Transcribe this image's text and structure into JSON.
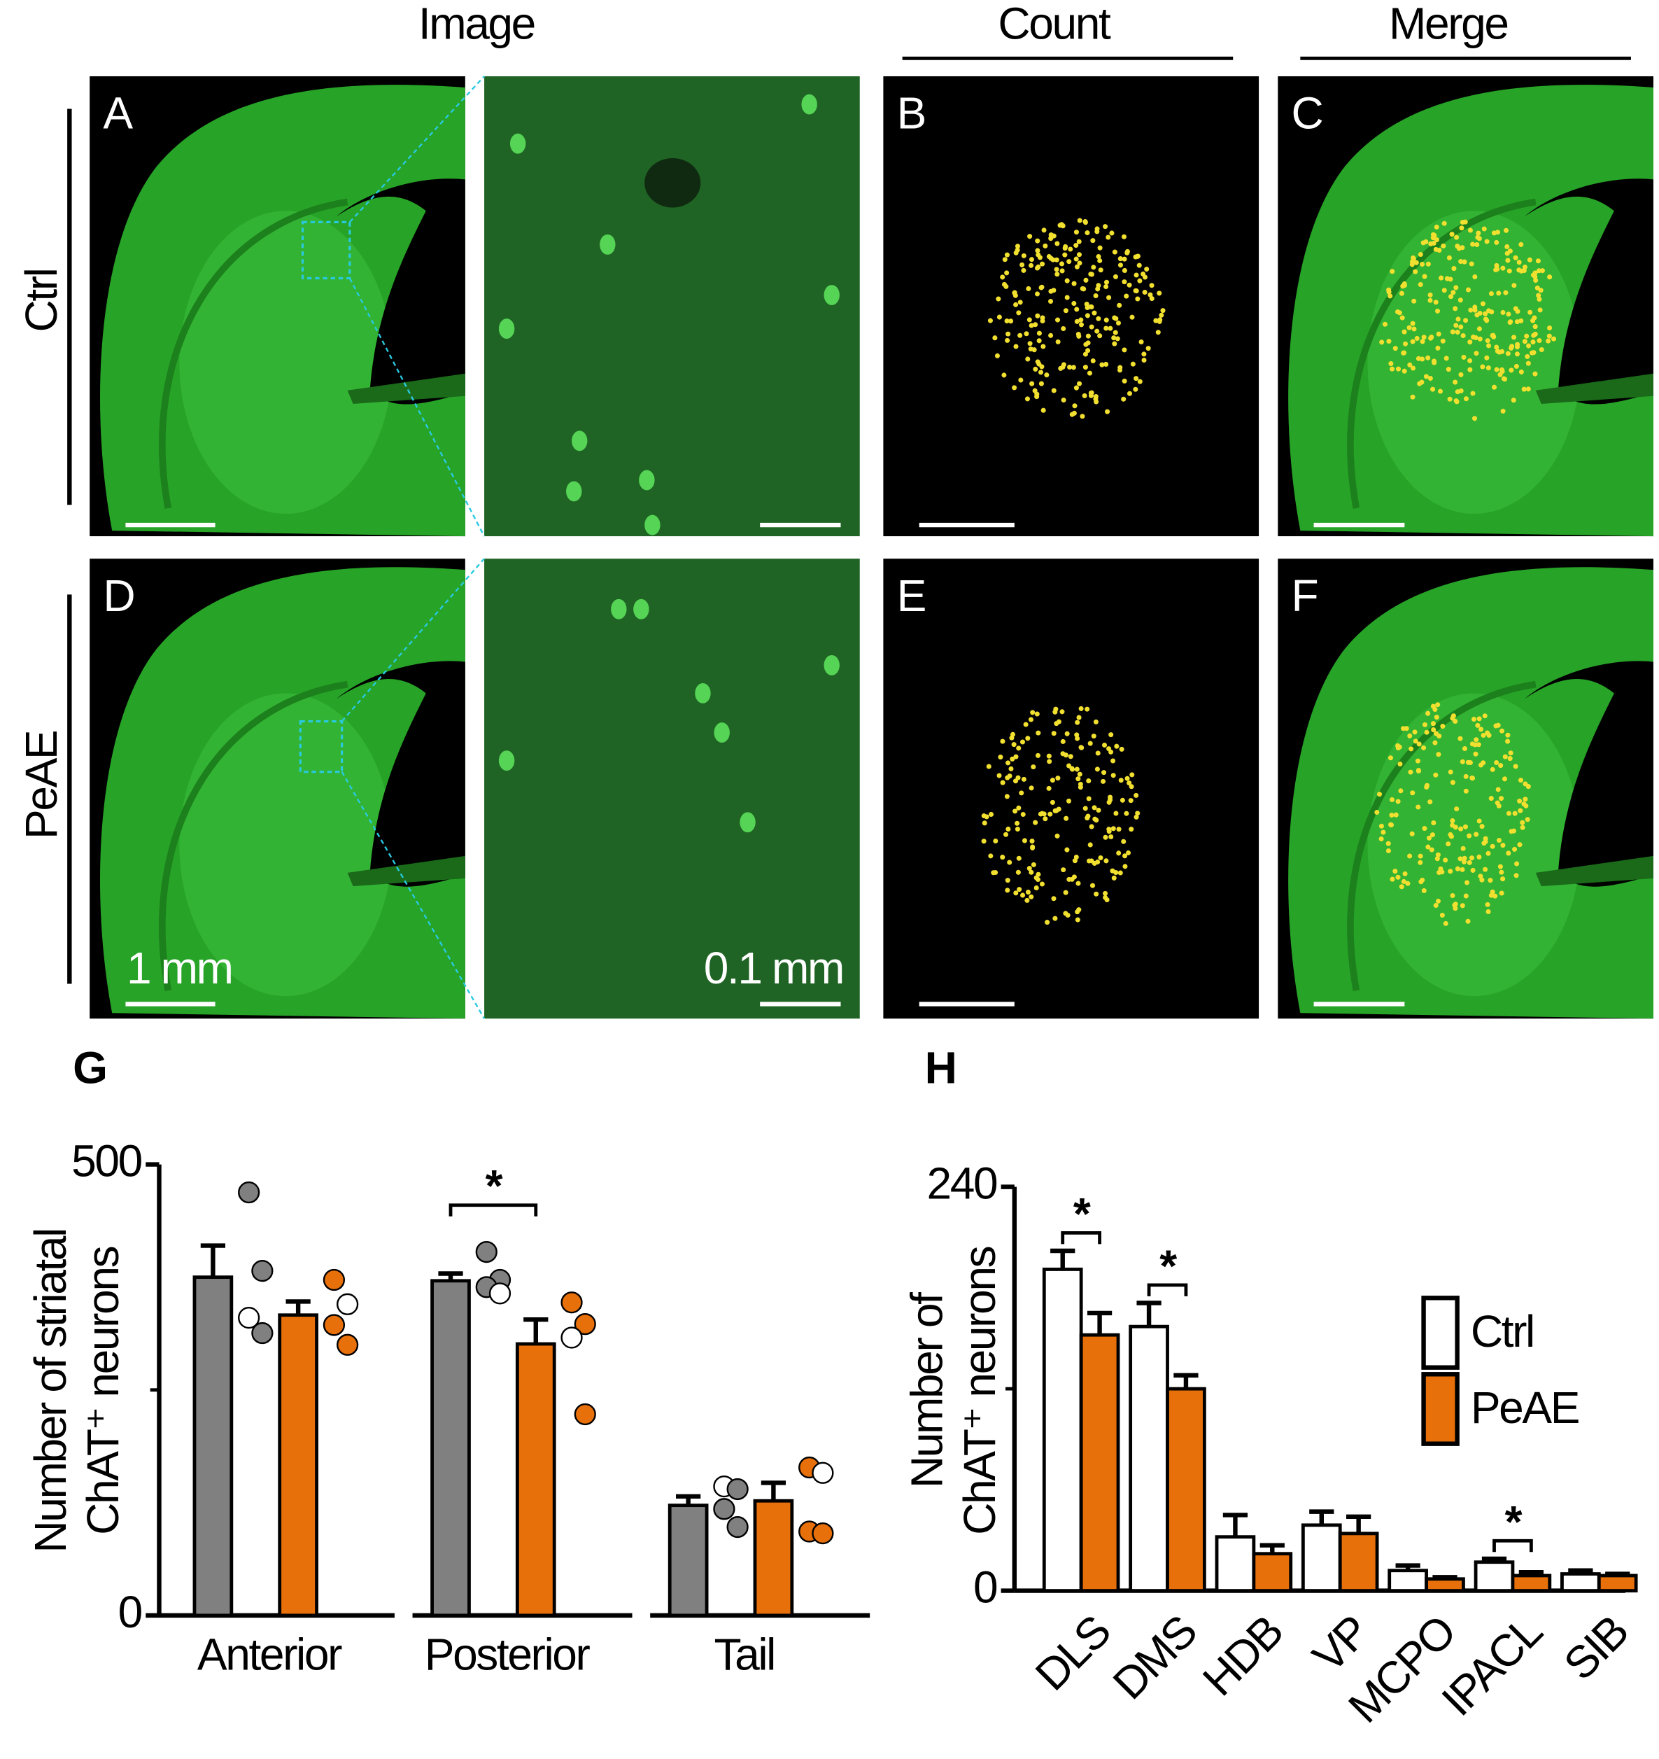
{
  "headers": [
    "Image",
    "Count",
    "Merge"
  ],
  "row_labels": [
    "Ctrl",
    "PeAE"
  ],
  "panel_letters": [
    "A",
    "B",
    "C",
    "D",
    "E",
    "F"
  ],
  "scale_labels": [
    "1 mm",
    "0.1 mm"
  ],
  "chart_data": [
    {
      "type": "bar",
      "panel": "G",
      "ylabel": [
        "Number of striatal",
        "ChAT⁺ neurons"
      ],
      "categories": [
        "Anterior",
        "Posterior",
        "Tail"
      ],
      "ylim": [
        0,
        500
      ],
      "yticks": [
        0,
        500
      ],
      "minor_yticks": [
        250
      ],
      "series": [
        {
          "color": "#808080",
          "values": [
            375,
            371,
            122
          ],
          "errors": [
            35,
            8,
            10
          ],
          "points": [
            [
              469,
              382,
              330,
              313
            ],
            [
              403,
              372,
              364,
              357
            ],
            [
              143,
              140,
              118,
              98
            ]
          ],
          "point_colors": [
            [
              "#808080",
              "#808080",
              "#ffffff",
              "#808080"
            ],
            [
              "#808080",
              "#808080",
              "#808080",
              "#ffffff"
            ],
            [
              "#ffffff",
              "#808080",
              "#808080",
              "#808080"
            ]
          ]
        },
        {
          "color": "#e8700a",
          "values": [
            333,
            301,
            127
          ],
          "errors": [
            15,
            27,
            20
          ],
          "points": [
            [
              372,
              345,
              322,
              300
            ],
            [
              347,
              323,
              308,
              223
            ],
            [
              164,
              158,
              93,
              91
            ]
          ],
          "point_colors": [
            [
              "#e8700a",
              "#ffffff",
              "#e8700a",
              "#e8700a"
            ],
            [
              "#e8700a",
              "#e8700a",
              "#ffffff",
              "#e8700a"
            ],
            [
              "#e8700a",
              "#ffffff",
              "#e8700a",
              "#e8700a"
            ]
          ]
        }
      ],
      "significant": [
        false,
        true,
        false
      ],
      "significance_label": "*"
    },
    {
      "type": "bar",
      "panel": "H",
      "ylabel": [
        "Number of",
        "ChAT⁺ neurons"
      ],
      "categories": [
        "DLS",
        "DMS",
        "HDB",
        "VP",
        "MCPO",
        "IPACL",
        "SIB"
      ],
      "ylim": [
        0,
        240
      ],
      "yticks": [
        0,
        240
      ],
      "minor_yticks": [
        120
      ],
      "legend": "right",
      "series": [
        {
          "name": "Ctrl",
          "color": "#ffffff",
          "values": [
            191,
            157,
            32,
            39,
            12,
            17,
            10
          ],
          "errors": [
            11,
            14,
            13,
            8,
            3,
            2,
            2
          ]
        },
        {
          "name": "PeAE",
          "color": "#e8700a",
          "values": [
            152,
            120,
            22,
            34,
            7,
            9,
            9
          ],
          "errors": [
            13,
            8,
            5,
            10,
            1,
            2,
            1
          ]
        }
      ],
      "significant": [
        true,
        true,
        false,
        false,
        false,
        true,
        false
      ],
      "significance_label": "*"
    }
  ]
}
